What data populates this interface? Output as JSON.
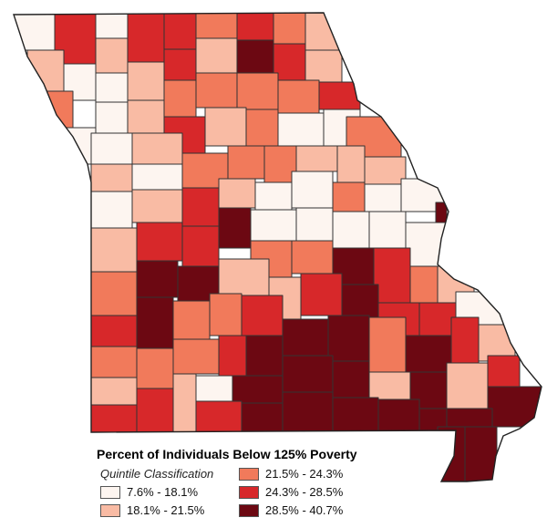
{
  "legend": {
    "title": "Percent of Individuals Below 125% Poverty",
    "subtitle": "Quintile Classification",
    "classes": [
      {
        "label": "7.6% - 18.1%",
        "color": "#fdf5f0"
      },
      {
        "label": "18.1% - 21.5%",
        "color": "#f9bba4"
      },
      {
        "label": "21.5% - 24.3%",
        "color": "#f17a5b"
      },
      {
        "label": "24.3% - 28.5%",
        "color": "#d7282a"
      },
      {
        "label": "28.5% - 40.7%",
        "color": "#6c0812"
      }
    ]
  }
}
